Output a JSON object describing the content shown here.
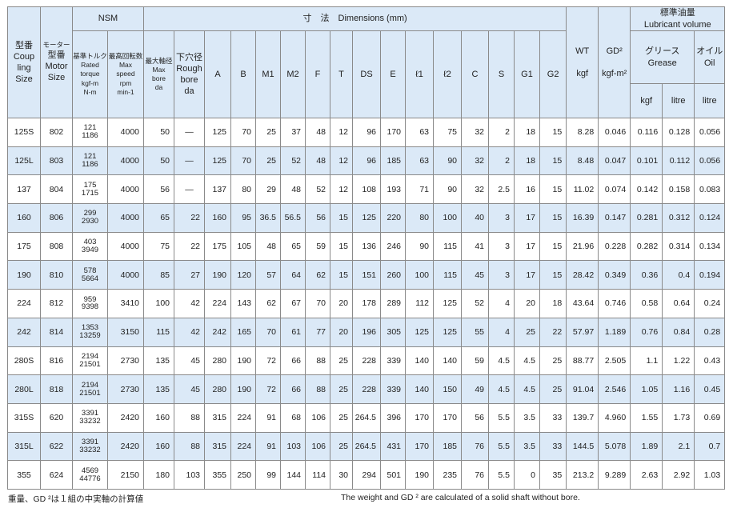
{
  "header": {
    "size_ja": "型番",
    "size_en_lines": [
      "Coup",
      "ling",
      "Size"
    ],
    "motor_ja_lines": [
      "モーター",
      "型番"
    ],
    "motor_en_lines": [
      "Motor",
      "Size"
    ],
    "nsm": "NSM",
    "dimensions": "寸　法　Dimensions (mm)",
    "wt": "WT",
    "wt_unit": "kgf",
    "gd2": "GD²",
    "gd2_unit": "kgf-m²",
    "lubricant_ja": "標準油量",
    "lubricant_en": "Lubricant volume",
    "grease_ja": "グリース",
    "grease_en": "Grease",
    "oil_ja": "オイル",
    "oil_en": "Oil",
    "grease_kgf": "kgf",
    "grease_litre": "litre",
    "oil_litre": "litre",
    "torque_lines": [
      "基準トルク",
      "Rated",
      "torque",
      "kgf-m",
      "N-m"
    ],
    "speed_lines": [
      "最高回転数",
      "Max",
      "speed",
      "rpm",
      "min-1"
    ],
    "maxbore_lines": [
      "最大軸径",
      "Max",
      "bore",
      "da"
    ],
    "rough_lines": [
      "下穴径",
      "Rough",
      "bore",
      "da"
    ],
    "dim_cols": [
      "A",
      "B",
      "M1",
      "M2",
      "F",
      "T",
      "DS",
      "E",
      "ℓ1",
      "ℓ2",
      "C",
      "S",
      "G1",
      "G2"
    ]
  },
  "rows": [
    {
      "size": "125S",
      "motor": "802",
      "torque1": "121",
      "torque2": "1186",
      "speed": "4000",
      "maxbore": "50",
      "rough": "—",
      "A": "125",
      "B": "70",
      "M1": "25",
      "M2": "37",
      "F": "48",
      "T": "12",
      "DS": "96",
      "E": "170",
      "l1": "63",
      "l2": "75",
      "C": "32",
      "S": "2",
      "G1": "18",
      "G2": "15",
      "wt": "8.28",
      "gd2": "0.046",
      "gk": "0.116",
      "gl": "0.128",
      "oil": "0.056"
    },
    {
      "size": "125L",
      "motor": "803",
      "torque1": "121",
      "torque2": "1186",
      "speed": "4000",
      "maxbore": "50",
      "rough": "—",
      "A": "125",
      "B": "70",
      "M1": "25",
      "M2": "52",
      "F": "48",
      "T": "12",
      "DS": "96",
      "E": "185",
      "l1": "63",
      "l2": "90",
      "C": "32",
      "S": "2",
      "G1": "18",
      "G2": "15",
      "wt": "8.48",
      "gd2": "0.047",
      "gk": "0.101",
      "gl": "0.112",
      "oil": "0.056"
    },
    {
      "size": "137",
      "motor": "804",
      "torque1": "175",
      "torque2": "1715",
      "speed": "4000",
      "maxbore": "56",
      "rough": "—",
      "A": "137",
      "B": "80",
      "M1": "29",
      "M2": "48",
      "F": "52",
      "T": "12",
      "DS": "108",
      "E": "193",
      "l1": "71",
      "l2": "90",
      "C": "32",
      "S": "2.5",
      "G1": "16",
      "G2": "15",
      "wt": "11.02",
      "gd2": "0.074",
      "gk": "0.142",
      "gl": "0.158",
      "oil": "0.083"
    },
    {
      "size": "160",
      "motor": "806",
      "torque1": "299",
      "torque2": "2930",
      "speed": "4000",
      "maxbore": "65",
      "rough": "22",
      "A": "160",
      "B": "95",
      "M1": "36.5",
      "M2": "56.5",
      "F": "56",
      "T": "15",
      "DS": "125",
      "E": "220",
      "l1": "80",
      "l2": "100",
      "C": "40",
      "S": "3",
      "G1": "17",
      "G2": "15",
      "wt": "16.39",
      "gd2": "0.147",
      "gk": "0.281",
      "gl": "0.312",
      "oil": "0.124"
    },
    {
      "size": "175",
      "motor": "808",
      "torque1": "403",
      "torque2": "3949",
      "speed": "4000",
      "maxbore": "75",
      "rough": "22",
      "A": "175",
      "B": "105",
      "M1": "48",
      "M2": "65",
      "F": "59",
      "T": "15",
      "DS": "136",
      "E": "246",
      "l1": "90",
      "l2": "115",
      "C": "41",
      "S": "3",
      "G1": "17",
      "G2": "15",
      "wt": "21.96",
      "gd2": "0.228",
      "gk": "0.282",
      "gl": "0.314",
      "oil": "0.134"
    },
    {
      "size": "190",
      "motor": "810",
      "torque1": "578",
      "torque2": "5664",
      "speed": "4000",
      "maxbore": "85",
      "rough": "27",
      "A": "190",
      "B": "120",
      "M1": "57",
      "M2": "64",
      "F": "62",
      "T": "15",
      "DS": "151",
      "E": "260",
      "l1": "100",
      "l2": "115",
      "C": "45",
      "S": "3",
      "G1": "17",
      "G2": "15",
      "wt": "28.42",
      "gd2": "0.349",
      "gk": "0.36",
      "gl": "0.4",
      "oil": "0.194"
    },
    {
      "size": "224",
      "motor": "812",
      "torque1": "959",
      "torque2": "9398",
      "speed": "3410",
      "maxbore": "100",
      "rough": "42",
      "A": "224",
      "B": "143",
      "M1": "62",
      "M2": "67",
      "F": "70",
      "T": "20",
      "DS": "178",
      "E": "289",
      "l1": "112",
      "l2": "125",
      "C": "52",
      "S": "4",
      "G1": "20",
      "G2": "18",
      "wt": "43.64",
      "gd2": "0.746",
      "gk": "0.58",
      "gl": "0.64",
      "oil": "0.24"
    },
    {
      "size": "242",
      "motor": "814",
      "torque1": "1353",
      "torque2": "13259",
      "speed": "3150",
      "maxbore": "115",
      "rough": "42",
      "A": "242",
      "B": "165",
      "M1": "70",
      "M2": "61",
      "F": "77",
      "T": "20",
      "DS": "196",
      "E": "305",
      "l1": "125",
      "l2": "125",
      "C": "55",
      "S": "4",
      "G1": "25",
      "G2": "22",
      "wt": "57.97",
      "gd2": "1.189",
      "gk": "0.76",
      "gl": "0.84",
      "oil": "0.28"
    },
    {
      "size": "280S",
      "motor": "816",
      "torque1": "2194",
      "torque2": "21501",
      "speed": "2730",
      "maxbore": "135",
      "rough": "45",
      "A": "280",
      "B": "190",
      "M1": "72",
      "M2": "66",
      "F": "88",
      "T": "25",
      "DS": "228",
      "E": "339",
      "l1": "140",
      "l2": "140",
      "C": "59",
      "S": "4.5",
      "G1": "4.5",
      "G2": "25",
      "wt": "88.77",
      "gd2": "2.505",
      "gk": "1.1",
      "gl": "1.22",
      "oil": "0.43"
    },
    {
      "size": "280L",
      "motor": "818",
      "torque1": "2194",
      "torque2": "21501",
      "speed": "2730",
      "maxbore": "135",
      "rough": "45",
      "A": "280",
      "B": "190",
      "M1": "72",
      "M2": "66",
      "F": "88",
      "T": "25",
      "DS": "228",
      "E": "339",
      "l1": "140",
      "l2": "150",
      "C": "49",
      "S": "4.5",
      "G1": "4.5",
      "G2": "25",
      "wt": "91.04",
      "gd2": "2.546",
      "gk": "1.05",
      "gl": "1.16",
      "oil": "0.45"
    },
    {
      "size": "315S",
      "motor": "620",
      "torque1": "3391",
      "torque2": "33232",
      "speed": "2420",
      "maxbore": "160",
      "rough": "88",
      "A": "315",
      "B": "224",
      "M1": "91",
      "M2": "68",
      "F": "106",
      "T": "25",
      "DS": "264.5",
      "E": "396",
      "l1": "170",
      "l2": "170",
      "C": "56",
      "S": "5.5",
      "G1": "3.5",
      "G2": "33",
      "wt": "139.7",
      "gd2": "4.960",
      "gk": "1.55",
      "gl": "1.73",
      "oil": "0.69"
    },
    {
      "size": "315L",
      "motor": "622",
      "torque1": "3391",
      "torque2": "33232",
      "speed": "2420",
      "maxbore": "160",
      "rough": "88",
      "A": "315",
      "B": "224",
      "M1": "91",
      "M2": "103",
      "F": "106",
      "T": "25",
      "DS": "264.5",
      "E": "431",
      "l1": "170",
      "l2": "185",
      "C": "76",
      "S": "5.5",
      "G1": "3.5",
      "G2": "33",
      "wt": "144.5",
      "gd2": "5.078",
      "gk": "1.89",
      "gl": "2.1",
      "oil": "0.7"
    },
    {
      "size": "355",
      "motor": "624",
      "torque1": "4569",
      "torque2": "44776",
      "speed": "2150",
      "maxbore": "180",
      "rough": "103",
      "A": "355",
      "B": "250",
      "M1": "99",
      "M2": "144",
      "F": "114",
      "T": "30",
      "DS": "294",
      "E": "501",
      "l1": "190",
      "l2": "235",
      "C": "76",
      "S": "5.5",
      "G1": "0",
      "G2": "35",
      "wt": "213.2",
      "gd2": "9.289",
      "gk": "2.63",
      "gl": "2.92",
      "oil": "1.03"
    }
  ],
  "footer": {
    "note_ja": "重量、GD ²は１組の中実軸の計算値",
    "note_en": "The weight and GD ² are calculated of a solid shaft without bore."
  },
  "colors": {
    "header_bg": "#dbe9f7",
    "row_shade": "#dbe9f7",
    "grid": "#8a8a8a"
  }
}
